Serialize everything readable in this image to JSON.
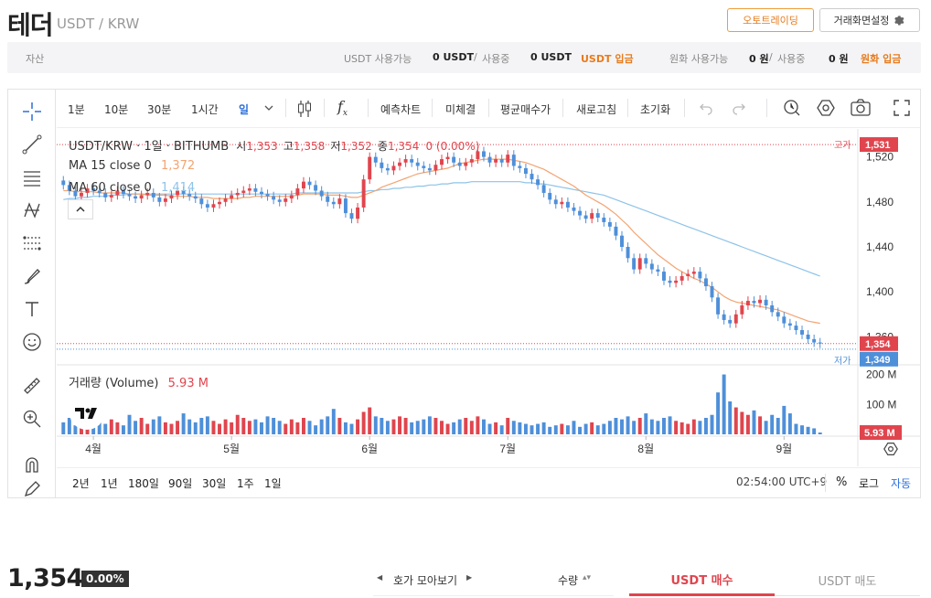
{
  "header": {
    "title": "테더",
    "pair": "USDT / KRW",
    "auto_trade_label": "오토트레이딩",
    "settings_label": "거래화면설정"
  },
  "assets": {
    "label": "자산",
    "usdt_available_label": "USDT 사용가능",
    "usdt_available": "0 USDT",
    "usdt_in_use_label": "사용중",
    "usdt_in_use": "0 USDT",
    "usdt_deposit": "USDT 입금",
    "krw_available_label": "원화 사용가능",
    "krw_available": "0 원",
    "krw_in_use_label": "사용중",
    "krw_in_use": "0 원",
    "krw_deposit": "원화 입금"
  },
  "toolbar": {
    "intervals": [
      "1분",
      "10분",
      "30분",
      "1시간",
      "일"
    ],
    "predict": "예측차트",
    "unfilled": "미체결",
    "avg_price": "평균매수가",
    "refresh": "새로고침",
    "reset": "초기화"
  },
  "legend": {
    "symbol": "USDT/KRW · 1일 · BITHUMB",
    "open_label": "시",
    "open": "1,353",
    "high_label": "고",
    "high": "1,358",
    "low_label": "저",
    "low": "1,352",
    "close_label": "종",
    "close": "1,354",
    "change": "0 (0.00%)",
    "ma15_label": "MA 15 close 0",
    "ma15_value": "1,372",
    "ma60_label": "MA 60 close 0",
    "ma60_value": "1,414",
    "volume_label": "거래량 (Volume)",
    "volume_value": "5.93 M"
  },
  "price_axis": {
    "ticks": [
      "1,520",
      "1,480",
      "1,440",
      "1,400",
      "1,360"
    ],
    "high_tag": "고가",
    "high_value": "1,531",
    "low_tag": "저가",
    "current_value": "1,354",
    "low_value": "1,349"
  },
  "volume_axis": {
    "ticks": [
      "200 M",
      "100 M"
    ],
    "current_value": "5.93 M"
  },
  "time_axis": {
    "months": [
      "4월",
      "5월",
      "6월",
      "7월",
      "8월",
      "9월"
    ]
  },
  "ranges": [
    "2년",
    "1년",
    "180일",
    "90일",
    "30일",
    "1주",
    "1일"
  ],
  "bottom_bar": {
    "clock": "02:54:00 UTC+9",
    "percent": "%",
    "log": "로그",
    "auto": "자동"
  },
  "ticker": {
    "price": "1,354",
    "change": "0.00%"
  },
  "orderbook": {
    "label": "호가 모아보기",
    "qty": "수량"
  },
  "trade_tabs": {
    "buy": "USDT 매수",
    "sell": "USDT 매도"
  },
  "colors": {
    "up": "#e0454e",
    "down": "#4e8fd9",
    "ma15": "#f3a471",
    "ma60": "#8ec3e8",
    "accent": "#e77b1c"
  },
  "chart_data": {
    "type": "candlestick",
    "interval": "1일",
    "closes": [
      1495,
      1490,
      1485,
      1488,
      1492,
      1490,
      1488,
      1484,
      1486,
      1490,
      1487,
      1485,
      1483,
      1486,
      1488,
      1484,
      1480,
      1483,
      1486,
      1490,
      1487,
      1485,
      1483,
      1478,
      1475,
      1478,
      1480,
      1483,
      1486,
      1488,
      1490,
      1492,
      1489,
      1487,
      1485,
      1482,
      1480,
      1483,
      1486,
      1492,
      1498,
      1495,
      1490,
      1485,
      1480,
      1478,
      1483,
      1470,
      1465,
      1475,
      1500,
      1520,
      1515,
      1510,
      1508,
      1512,
      1515,
      1518,
      1515,
      1512,
      1510,
      1508,
      1513,
      1518,
      1520,
      1515,
      1512,
      1515,
      1518,
      1525,
      1520,
      1515,
      1518,
      1515,
      1522,
      1512,
      1510,
      1505,
      1500,
      1495,
      1488,
      1482,
      1478,
      1480,
      1475,
      1472,
      1468,
      1465,
      1470,
      1466,
      1462,
      1458,
      1450,
      1440,
      1430,
      1420,
      1430,
      1425,
      1420,
      1418,
      1410,
      1408,
      1410,
      1414,
      1416,
      1418,
      1412,
      1405,
      1395,
      1380,
      1375,
      1372,
      1380,
      1388,
      1392,
      1390,
      1393,
      1388,
      1382,
      1378,
      1372,
      1370,
      1366,
      1362,
      1358,
      1355,
      1354
    ],
    "ma15": [
      1490,
      1490,
      1489,
      1489,
      1489,
      1489,
      1488,
      1488,
      1488,
      1488,
      1488,
      1487,
      1487,
      1487,
      1486,
      1486,
      1486,
      1486,
      1485,
      1485,
      1485,
      1485,
      1484,
      1484,
      1484,
      1483,
      1483,
      1483,
      1483,
      1483,
      1484,
      1484,
      1485,
      1485,
      1485,
      1485,
      1485,
      1485,
      1485,
      1486,
      1487,
      1487,
      1487,
      1487,
      1486,
      1486,
      1486,
      1485,
      1484,
      1484,
      1486,
      1488,
      1490,
      1493,
      1495,
      1497,
      1499,
      1501,
      1503,
      1505,
      1506,
      1507,
      1508,
      1509,
      1510,
      1512,
      1514,
      1515,
      1516,
      1517,
      1518,
      1518,
      1518,
      1518,
      1518,
      1517,
      1516,
      1515,
      1513,
      1511,
      1509,
      1506,
      1503,
      1500,
      1497,
      1494,
      1490,
      1486,
      1483,
      1480,
      1477,
      1473,
      1469,
      1464,
      1459,
      1453,
      1448,
      1443,
      1438,
      1433,
      1429,
      1425,
      1421,
      1418,
      1415,
      1412,
      1410,
      1407,
      1404,
      1400,
      1396,
      1393,
      1391,
      1390,
      1389,
      1388,
      1387,
      1386,
      1385,
      1384,
      1382,
      1380,
      1378,
      1376,
      1374,
      1373,
      1372
    ],
    "ma60": [
      1482,
      1483,
      1483,
      1484,
      1484,
      1485,
      1485,
      1485,
      1486,
      1486,
      1486,
      1487,
      1487,
      1487,
      1487,
      1487,
      1487,
      1487,
      1487,
      1487,
      1487,
      1487,
      1487,
      1487,
      1487,
      1487,
      1487,
      1487,
      1487,
      1487,
      1487,
      1487,
      1487,
      1487,
      1487,
      1487,
      1487,
      1487,
      1487,
      1488,
      1488,
      1488,
      1488,
      1488,
      1488,
      1488,
      1488,
      1488,
      1488,
      1488,
      1489,
      1490,
      1490,
      1491,
      1491,
      1492,
      1492,
      1493,
      1493,
      1494,
      1494,
      1495,
      1495,
      1496,
      1496,
      1497,
      1497,
      1497,
      1498,
      1498,
      1498,
      1498,
      1498,
      1498,
      1498,
      1498,
      1498,
      1497,
      1497,
      1496,
      1496,
      1495,
      1494,
      1493,
      1492,
      1491,
      1490,
      1489,
      1488,
      1487,
      1486,
      1484,
      1482,
      1480,
      1478,
      1476,
      1474,
      1472,
      1470,
      1468,
      1466,
      1464,
      1462,
      1460,
      1458,
      1456,
      1454,
      1452,
      1450,
      1448,
      1446,
      1444,
      1442,
      1440,
      1438,
      1436,
      1434,
      1432,
      1430,
      1428,
      1426,
      1424,
      1422,
      1420,
      1418,
      1416,
      1414
    ],
    "volumes_m": [
      40,
      55,
      30,
      70,
      25,
      45,
      60,
      35,
      50,
      40,
      30,
      65,
      45,
      55,
      35,
      50,
      60,
      40,
      35,
      45,
      70,
      50,
      40,
      55,
      60,
      45,
      35,
      50,
      40,
      65,
      55,
      45,
      50,
      40,
      60,
      55,
      45,
      35,
      50,
      40,
      55,
      45,
      30,
      50,
      60,
      85,
      55,
      40,
      35,
      50,
      75,
      90,
      60,
      55,
      45,
      50,
      60,
      55,
      40,
      45,
      50,
      60,
      55,
      45,
      35,
      40,
      50,
      55,
      45,
      60,
      50,
      35,
      40,
      30,
      55,
      45,
      40,
      35,
      30,
      35,
      40,
      25,
      30,
      35,
      30,
      45,
      25,
      35,
      40,
      30,
      35,
      45,
      55,
      50,
      60,
      45,
      55,
      70,
      50,
      45,
      55,
      60,
      45,
      40,
      35,
      50,
      45,
      55,
      65,
      140,
      200,
      110,
      90,
      75,
      65,
      80,
      60,
      45,
      65,
      55,
      95,
      70,
      35,
      30,
      25,
      20,
      6
    ],
    "ylim": [
      1340,
      1540
    ],
    "volume_ylim": [
      0,
      220
    ],
    "high": 1531,
    "low": 1349,
    "last": 1354,
    "x_labels": [
      "4월",
      "5월",
      "6월",
      "7월",
      "8월",
      "9월"
    ]
  }
}
